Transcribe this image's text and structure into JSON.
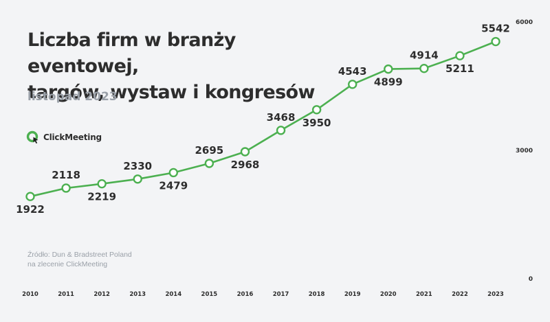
{
  "title_line1": "Liczba firm w branży eventowej,",
  "title_line2": "targów, wystaw i kongresów",
  "subtitle": "listopad 2023",
  "brand": {
    "name": "ClickMeeting",
    "colors": {
      "ring": "#4cb050",
      "cursor": "#1e1e1e"
    },
    "icon": "clickmeeting-logo-icon"
  },
  "source_line1": "Źródło: Dun & Bradstreet Poland",
  "source_line2": "na zlecenie ClickMeeting",
  "colors": {
    "line": "#4cb050",
    "marker_fill": "#ffffff",
    "background": "#f3f4f6",
    "text": "#2d2d2d",
    "muted": "#9aa0a8"
  },
  "chart_data": {
    "type": "line",
    "title": "Liczba firm w branży eventowej, targów, wystaw i kongresów",
    "subtitle": "listopad 2023",
    "x": [
      "2010",
      "2011",
      "2012",
      "2013",
      "2014",
      "2015",
      "2016",
      "2017",
      "2018",
      "2019",
      "2020",
      "2021",
      "2022",
      "2023"
    ],
    "values": [
      1922,
      2118,
      2219,
      2330,
      2479,
      2695,
      2968,
      3468,
      3950,
      4543,
      4899,
      4914,
      5211,
      5542
    ],
    "label_position": [
      "below",
      "above",
      "below",
      "above",
      "below",
      "above",
      "below",
      "above",
      "below",
      "above",
      "below",
      "above",
      "below",
      "above"
    ],
    "y_axis": {
      "position": "right",
      "ticks": [
        0,
        3000,
        6000
      ],
      "ylim": [
        0,
        6000
      ]
    },
    "grid": false,
    "legend": "none",
    "xlabel": "",
    "ylabel": ""
  }
}
